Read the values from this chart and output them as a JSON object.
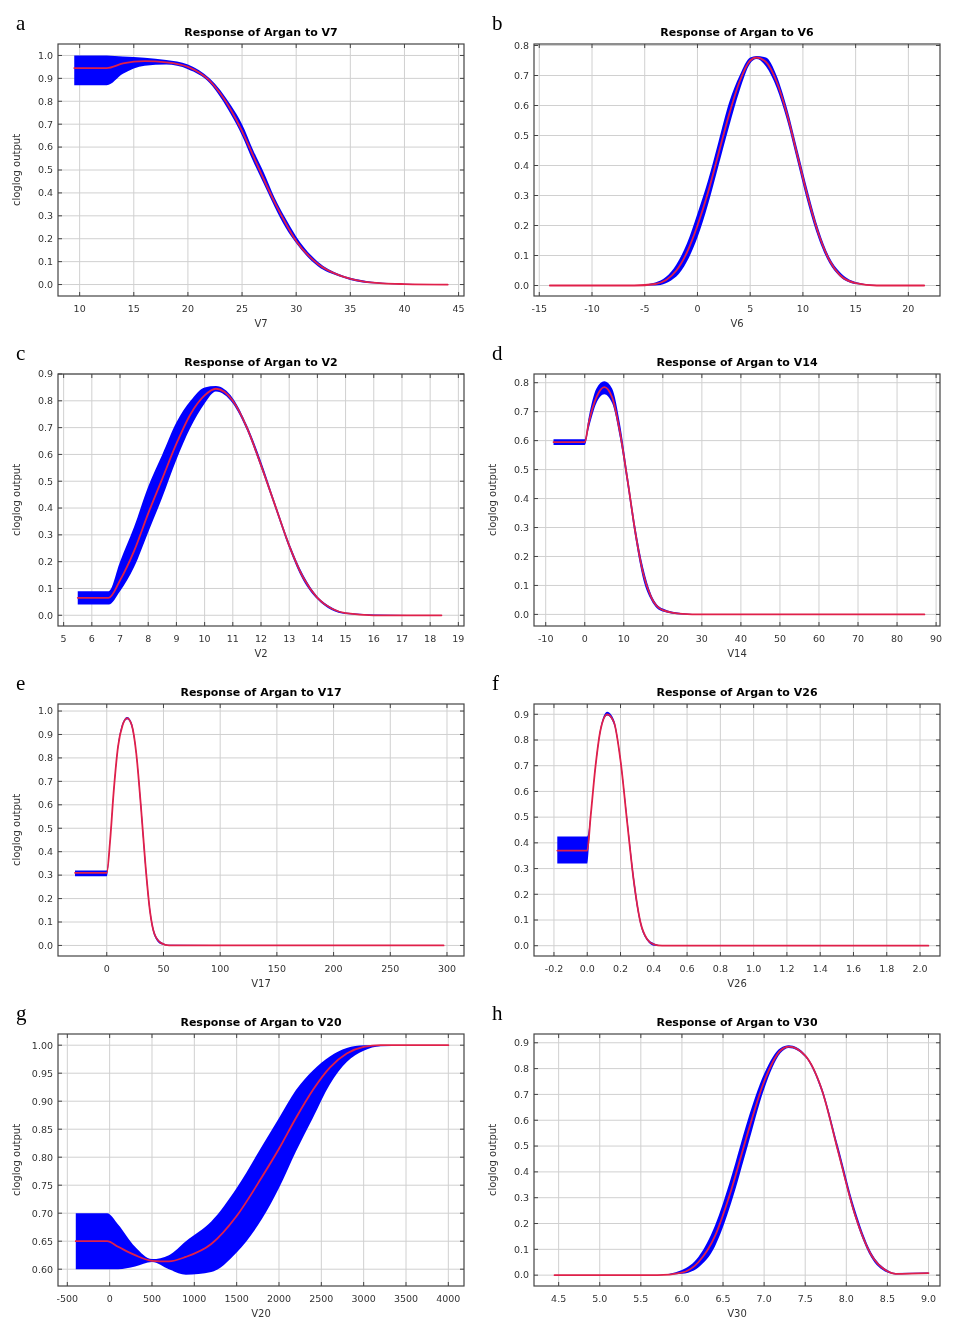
{
  "chart_data": [
    {
      "type": "line",
      "title": "Response of Argan to V7",
      "xlabel": "V7",
      "ylabel": "cloglog output",
      "annotations": [
        "a"
      ],
      "grid": true,
      "xlim": [
        8,
        45.5
      ],
      "xticks": [
        10,
        15,
        20,
        25,
        30,
        35,
        40,
        45
      ],
      "ylim": [
        -0.05,
        1.05
      ],
      "yticks": [
        {
          "value": 0,
          "label": "0.0"
        },
        0.1,
        0.2,
        0.3,
        0.4,
        0.5,
        0.6,
        0.7,
        0.8,
        0.9,
        {
          "value": 1,
          "label": "1.0"
        }
      ],
      "x": [
        9.5,
        12.5,
        14,
        16,
        18,
        20,
        22,
        24,
        25,
        26,
        27,
        28,
        29,
        30,
        32,
        34,
        36,
        38,
        40,
        44
      ],
      "series": [
        {
          "color": "#e0204a",
          "values": [
            0.945,
            0.945,
            0.965,
            0.975,
            0.97,
            0.95,
            0.89,
            0.76,
            0.67,
            0.565,
            0.46,
            0.36,
            0.27,
            0.19,
            0.09,
            0.04,
            0.015,
            0.005,
            0.002,
            0
          ],
          "lower": [
            0.87,
            0.87,
            0.92,
            0.955,
            0.96,
            0.94,
            0.88,
            0.74,
            0.65,
            0.54,
            0.44,
            0.34,
            0.25,
            0.18,
            0.08,
            0.035,
            0.01,
            0.003,
            0,
            0
          ],
          "upper": [
            1,
            1,
            0.995,
            0.99,
            0.98,
            0.96,
            0.9,
            0.78,
            0.7,
            0.59,
            0.49,
            0.38,
            0.29,
            0.21,
            0.1,
            0.045,
            0.02,
            0.008,
            0.004,
            0.001
          ]
        }
      ]
    },
    {
      "type": "line",
      "title": "Response of Argan to V6",
      "xlabel": "V6",
      "annotations": [
        "b"
      ],
      "grid": true,
      "xlim": [
        -15.5,
        23
      ],
      "xticks": [
        -15,
        -10,
        -5,
        0,
        5,
        10,
        15,
        20
      ],
      "ylim": [
        -0.035,
        0.805
      ],
      "yticks": [
        {
          "value": 0,
          "label": "0.0"
        },
        0.1,
        0.2,
        0.3,
        0.4,
        0.5,
        0.6,
        0.7,
        0.8
      ],
      "x": [
        -14,
        -6,
        -4,
        -2,
        -1,
        0,
        1,
        2,
        3,
        4,
        5,
        5.6,
        6.5,
        7.5,
        8.5,
        9.5,
        10.5,
        11.5,
        12.5,
        13.5,
        15,
        17,
        21.5
      ],
      "series": [
        {
          "color": "#e0204a",
          "values": [
            0,
            0,
            0.005,
            0.05,
            0.11,
            0.2,
            0.31,
            0.44,
            0.57,
            0.68,
            0.75,
            0.76,
            0.745,
            0.68,
            0.57,
            0.43,
            0.29,
            0.17,
            0.085,
            0.035,
            0.008,
            0,
            0
          ],
          "lower": [
            0,
            0,
            0,
            0.03,
            0.08,
            0.16,
            0.27,
            0.4,
            0.53,
            0.65,
            0.74,
            0.755,
            0.73,
            0.66,
            0.55,
            0.41,
            0.27,
            0.155,
            0.075,
            0.03,
            0.005,
            0,
            0
          ],
          "upper": [
            0,
            0,
            0.01,
            0.07,
            0.14,
            0.24,
            0.35,
            0.48,
            0.61,
            0.7,
            0.76,
            0.765,
            0.76,
            0.7,
            0.59,
            0.45,
            0.31,
            0.185,
            0.095,
            0.045,
            0.012,
            0.002,
            0
          ]
        }
      ]
    },
    {
      "type": "line",
      "title": "Response of Argan to V2",
      "xlabel": "V2",
      "ylabel": "cloglog output",
      "annotations": [
        "c"
      ],
      "grid": true,
      "xlim": [
        4.8,
        19.2
      ],
      "xticks": [
        5,
        6,
        7,
        8,
        9,
        10,
        11,
        12,
        13,
        14,
        15,
        16,
        17,
        18,
        19
      ],
      "ylim": [
        -0.04,
        0.9
      ],
      "yticks": [
        {
          "value": 0,
          "label": "0.0"
        },
        0.1,
        0.2,
        0.3,
        0.4,
        0.5,
        0.6,
        0.7,
        0.8,
        0.9
      ],
      "x": [
        5.5,
        6.6,
        7,
        7.5,
        8,
        8.5,
        9,
        9.5,
        10,
        10.4,
        11,
        11.5,
        12,
        12.5,
        13,
        13.5,
        14,
        14.5,
        15,
        16,
        18.4
      ],
      "series": [
        {
          "color": "#e0204a",
          "values": [
            0.065,
            0.065,
            0.13,
            0.24,
            0.38,
            0.51,
            0.64,
            0.75,
            0.82,
            0.845,
            0.8,
            0.7,
            0.56,
            0.41,
            0.26,
            0.14,
            0.065,
            0.025,
            0.008,
            0,
            0
          ],
          "lower": [
            0.04,
            0.04,
            0.09,
            0.18,
            0.31,
            0.44,
            0.58,
            0.7,
            0.79,
            0.835,
            0.79,
            0.69,
            0.55,
            0.4,
            0.25,
            0.13,
            0.06,
            0.02,
            0.005,
            0,
            0
          ],
          "upper": [
            0.09,
            0.09,
            0.2,
            0.33,
            0.48,
            0.6,
            0.72,
            0.8,
            0.85,
            0.855,
            0.81,
            0.71,
            0.575,
            0.42,
            0.27,
            0.15,
            0.07,
            0.03,
            0.01,
            0.003,
            0
          ]
        }
      ]
    },
    {
      "type": "line",
      "title": "Response of Argan to V14",
      "xlabel": "V14",
      "ylabel": "cloglog output",
      "annotations": [
        "d"
      ],
      "grid": true,
      "xlim": [
        -13,
        91
      ],
      "xticks": [
        -10,
        0,
        10,
        20,
        30,
        40,
        50,
        60,
        70,
        80,
        90
      ],
      "ylim": [
        -0.04,
        0.83
      ],
      "yticks": [
        {
          "value": 0,
          "label": "0.0"
        },
        0.1,
        0.2,
        0.3,
        0.4,
        0.5,
        0.6,
        0.7,
        0.8
      ],
      "x": [
        -8,
        0,
        1,
        3,
        5,
        7,
        9,
        11,
        13,
        15,
        17,
        20,
        25,
        30,
        87
      ],
      "series": [
        {
          "color": "#e0204a",
          "values": [
            0.595,
            0.595,
            0.66,
            0.75,
            0.785,
            0.75,
            0.63,
            0.46,
            0.28,
            0.14,
            0.06,
            0.015,
            0.002,
            0,
            0
          ],
          "lower": [
            0.585,
            0.585,
            0.64,
            0.73,
            0.76,
            0.73,
            0.61,
            0.44,
            0.26,
            0.12,
            0.05,
            0.01,
            0,
            0,
            0
          ],
          "upper": [
            0.605,
            0.605,
            0.68,
            0.78,
            0.805,
            0.78,
            0.66,
            0.48,
            0.3,
            0.16,
            0.07,
            0.02,
            0.004,
            0,
            0
          ]
        }
      ]
    },
    {
      "type": "line",
      "title": "Response of Argan to V17",
      "xlabel": "V17",
      "ylabel": "cloglog output",
      "annotations": [
        "e"
      ],
      "grid": true,
      "xlim": [
        -43,
        315
      ],
      "xticks": [
        0,
        50,
        100,
        150,
        200,
        250,
        300
      ],
      "ylim": [
        -0.045,
        1.03
      ],
      "yticks": [
        {
          "value": 0,
          "label": "0.0"
        },
        0.1,
        0.2,
        0.3,
        0.4,
        0.5,
        0.6,
        0.7,
        0.8,
        0.9,
        {
          "value": 1,
          "label": "1.0"
        }
      ],
      "x": [
        -28,
        0,
        3,
        6,
        10,
        14,
        18,
        22,
        26,
        30,
        34,
        38,
        42,
        48,
        55,
        297
      ],
      "series": [
        {
          "color": "#e0204a",
          "values": [
            0.31,
            0.31,
            0.45,
            0.65,
            0.85,
            0.94,
            0.97,
            0.94,
            0.82,
            0.6,
            0.35,
            0.15,
            0.05,
            0.01,
            0,
            0
          ],
          "lower": [
            0.295,
            0.295,
            0.44,
            0.64,
            0.84,
            0.935,
            0.965,
            0.93,
            0.81,
            0.58,
            0.33,
            0.135,
            0.04,
            0.005,
            0,
            0
          ],
          "upper": [
            0.32,
            0.32,
            0.46,
            0.66,
            0.86,
            0.95,
            0.975,
            0.95,
            0.83,
            0.62,
            0.37,
            0.165,
            0.06,
            0.015,
            0.003,
            0
          ]
        }
      ]
    },
    {
      "type": "line",
      "title": "Response of Argan to V26",
      "xlabel": "V26",
      "annotations": [
        "f"
      ],
      "grid": true,
      "xlim": [
        -0.32,
        2.12
      ],
      "xticks": [
        -0.2,
        {
          "value": 0,
          "label": "0.0"
        },
        0.2,
        0.4,
        0.6,
        0.8,
        {
          "value": 1,
          "label": "1.0"
        },
        1.2,
        1.4,
        1.6,
        1.8,
        {
          "value": 2,
          "label": "2.0"
        }
      ],
      "ylim": [
        -0.04,
        0.94
      ],
      "yticks": [
        {
          "value": 0,
          "label": "0.0"
        },
        0.1,
        0.2,
        0.3,
        0.4,
        0.5,
        0.6,
        0.7,
        0.8,
        0.9
      ],
      "x": [
        -0.18,
        0,
        0.02,
        0.05,
        0.08,
        0.12,
        0.16,
        0.2,
        0.24,
        0.28,
        0.32,
        0.36,
        0.4,
        0.45,
        2.05
      ],
      "series": [
        {
          "color": "#e0204a",
          "values": [
            0.37,
            0.37,
            0.5,
            0.7,
            0.84,
            0.9,
            0.87,
            0.72,
            0.48,
            0.25,
            0.09,
            0.025,
            0.005,
            0,
            0
          ],
          "lower": [
            0.32,
            0.32,
            0.49,
            0.69,
            0.83,
            0.895,
            0.86,
            0.71,
            0.47,
            0.23,
            0.08,
            0.02,
            0,
            0,
            0
          ],
          "upper": [
            0.425,
            0.425,
            0.51,
            0.71,
            0.85,
            0.91,
            0.88,
            0.73,
            0.5,
            0.27,
            0.1,
            0.03,
            0.01,
            0.002,
            0
          ]
        }
      ]
    },
    {
      "type": "line",
      "title": "Response of Argan to V20",
      "xlabel": "V20",
      "ylabel": "cloglog output",
      "annotations": [
        "g"
      ],
      "grid": true,
      "xlim": [
        -610,
        4185
      ],
      "xticks": [
        -500,
        0,
        500,
        1000,
        1500,
        2000,
        2500,
        3000,
        3500,
        4000
      ],
      "ylim": [
        0.57,
        1.02
      ],
      "yticks": [
        {
          "value": 0.6,
          "label": "0.60"
        },
        0.65,
        {
          "value": 0.7,
          "label": "0.70"
        },
        0.75,
        {
          "value": 0.8,
          "label": "0.80"
        },
        0.85,
        {
          "value": 0.9,
          "label": "0.90"
        },
        0.95,
        {
          "value": 1,
          "label": "1.00"
        }
      ],
      "x": [
        -400,
        -30,
        100,
        300,
        500,
        700,
        900,
        1200,
        1500,
        1800,
        2000,
        2200,
        2400,
        2600,
        2800,
        3000,
        3200,
        4000
      ],
      "series": [
        {
          "color": "#e0204a",
          "values": [
            0.65,
            0.65,
            0.64,
            0.625,
            0.615,
            0.614,
            0.622,
            0.645,
            0.695,
            0.765,
            0.815,
            0.87,
            0.92,
            0.96,
            0.985,
            0.997,
            1,
            1
          ],
          "lower": [
            0.6,
            0.6,
            0.6,
            0.605,
            0.613,
            0.6,
            0.59,
            0.595,
            0.63,
            0.69,
            0.745,
            0.81,
            0.87,
            0.93,
            0.97,
            0.99,
            0.998,
            1
          ],
          "upper": [
            0.7,
            0.7,
            0.68,
            0.64,
            0.618,
            0.625,
            0.65,
            0.685,
            0.745,
            0.82,
            0.87,
            0.92,
            0.955,
            0.98,
            0.995,
            1,
            1,
            1
          ]
        }
      ]
    },
    {
      "type": "line",
      "title": "Response of Argan to V30",
      "xlabel": "V30",
      "ylabel": "cloglog output",
      "annotations": [
        "h"
      ],
      "grid": true,
      "xlim": [
        4.2,
        9.14
      ],
      "xticks": [
        4.5,
        {
          "value": 5,
          "label": "5.0"
        },
        5.5,
        {
          "value": 6,
          "label": "6.0"
        },
        6.5,
        {
          "value": 7,
          "label": "7.0"
        },
        7.5,
        {
          "value": 8,
          "label": "8.0"
        },
        8.5,
        {
          "value": 9,
          "label": "9.0"
        }
      ],
      "ylim": [
        -0.042,
        0.934
      ],
      "yticks": [
        {
          "value": 0,
          "label": "0.0"
        },
        0.1,
        0.2,
        0.3,
        0.4,
        0.5,
        0.6,
        0.7,
        0.8,
        0.9
      ],
      "x": [
        4.45,
        5.7,
        6,
        6.2,
        6.4,
        6.6,
        6.8,
        7,
        7.2,
        7.3,
        7.5,
        7.7,
        7.9,
        8.1,
        8.3,
        8.5,
        8.6,
        9
      ],
      "series": [
        {
          "color": "#e0204a",
          "values": [
            0,
            0,
            0.01,
            0.05,
            0.15,
            0.33,
            0.55,
            0.75,
            0.87,
            0.885,
            0.85,
            0.72,
            0.48,
            0.24,
            0.08,
            0.015,
            0.005,
            0.008
          ],
          "lower": [
            0,
            0,
            0.005,
            0.03,
            0.11,
            0.28,
            0.5,
            0.72,
            0.86,
            0.88,
            0.845,
            0.71,
            0.47,
            0.23,
            0.07,
            0.01,
            0.003,
            0.005
          ],
          "upper": [
            0,
            0,
            0.02,
            0.07,
            0.19,
            0.38,
            0.6,
            0.78,
            0.88,
            0.89,
            0.855,
            0.73,
            0.5,
            0.26,
            0.09,
            0.02,
            0.008,
            0.01
          ]
        }
      ]
    }
  ]
}
